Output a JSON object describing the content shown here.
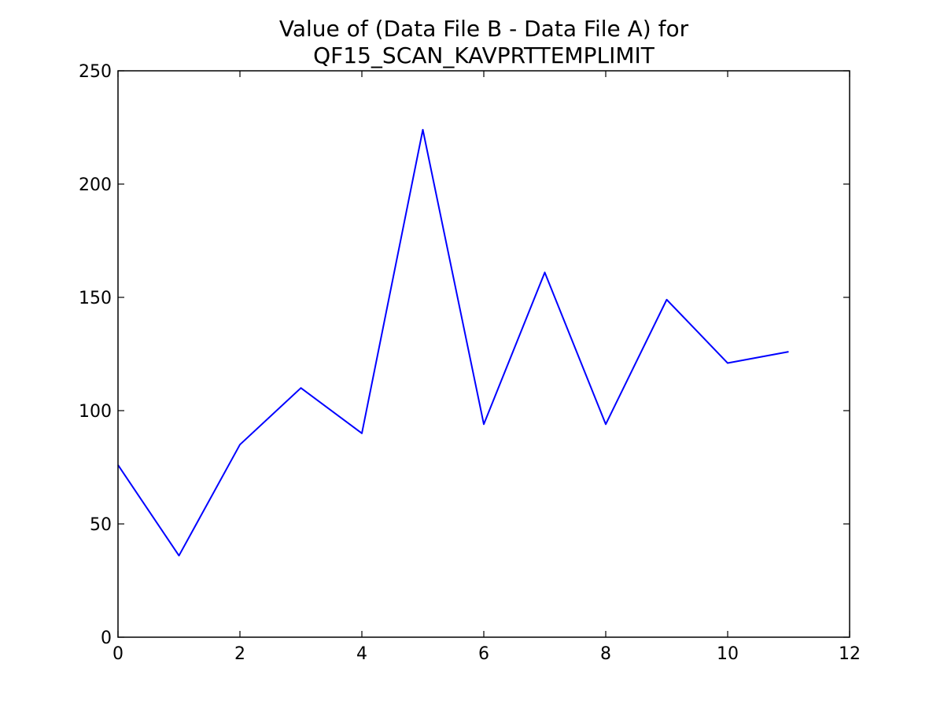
{
  "chart_data": {
    "type": "line",
    "title_lines": [
      "Value of (Data File B - Data File A) for",
      "QF15_SCAN_KAVPRTTEMPLIMIT"
    ],
    "xlabel": "",
    "ylabel": "",
    "xlim": [
      0,
      12
    ],
    "ylim": [
      0,
      250
    ],
    "x_ticks": [
      0,
      2,
      4,
      6,
      8,
      10,
      12
    ],
    "y_ticks": [
      0,
      50,
      100,
      150,
      200,
      250
    ],
    "grid": false,
    "series": [
      {
        "color": "#0000ff",
        "x": [
          0,
          1,
          2,
          3,
          4,
          5,
          6,
          7,
          8,
          9,
          10,
          11
        ],
        "y": [
          76,
          36,
          85,
          110,
          90,
          224,
          94,
          161,
          94,
          149,
          121,
          126
        ]
      }
    ]
  }
}
